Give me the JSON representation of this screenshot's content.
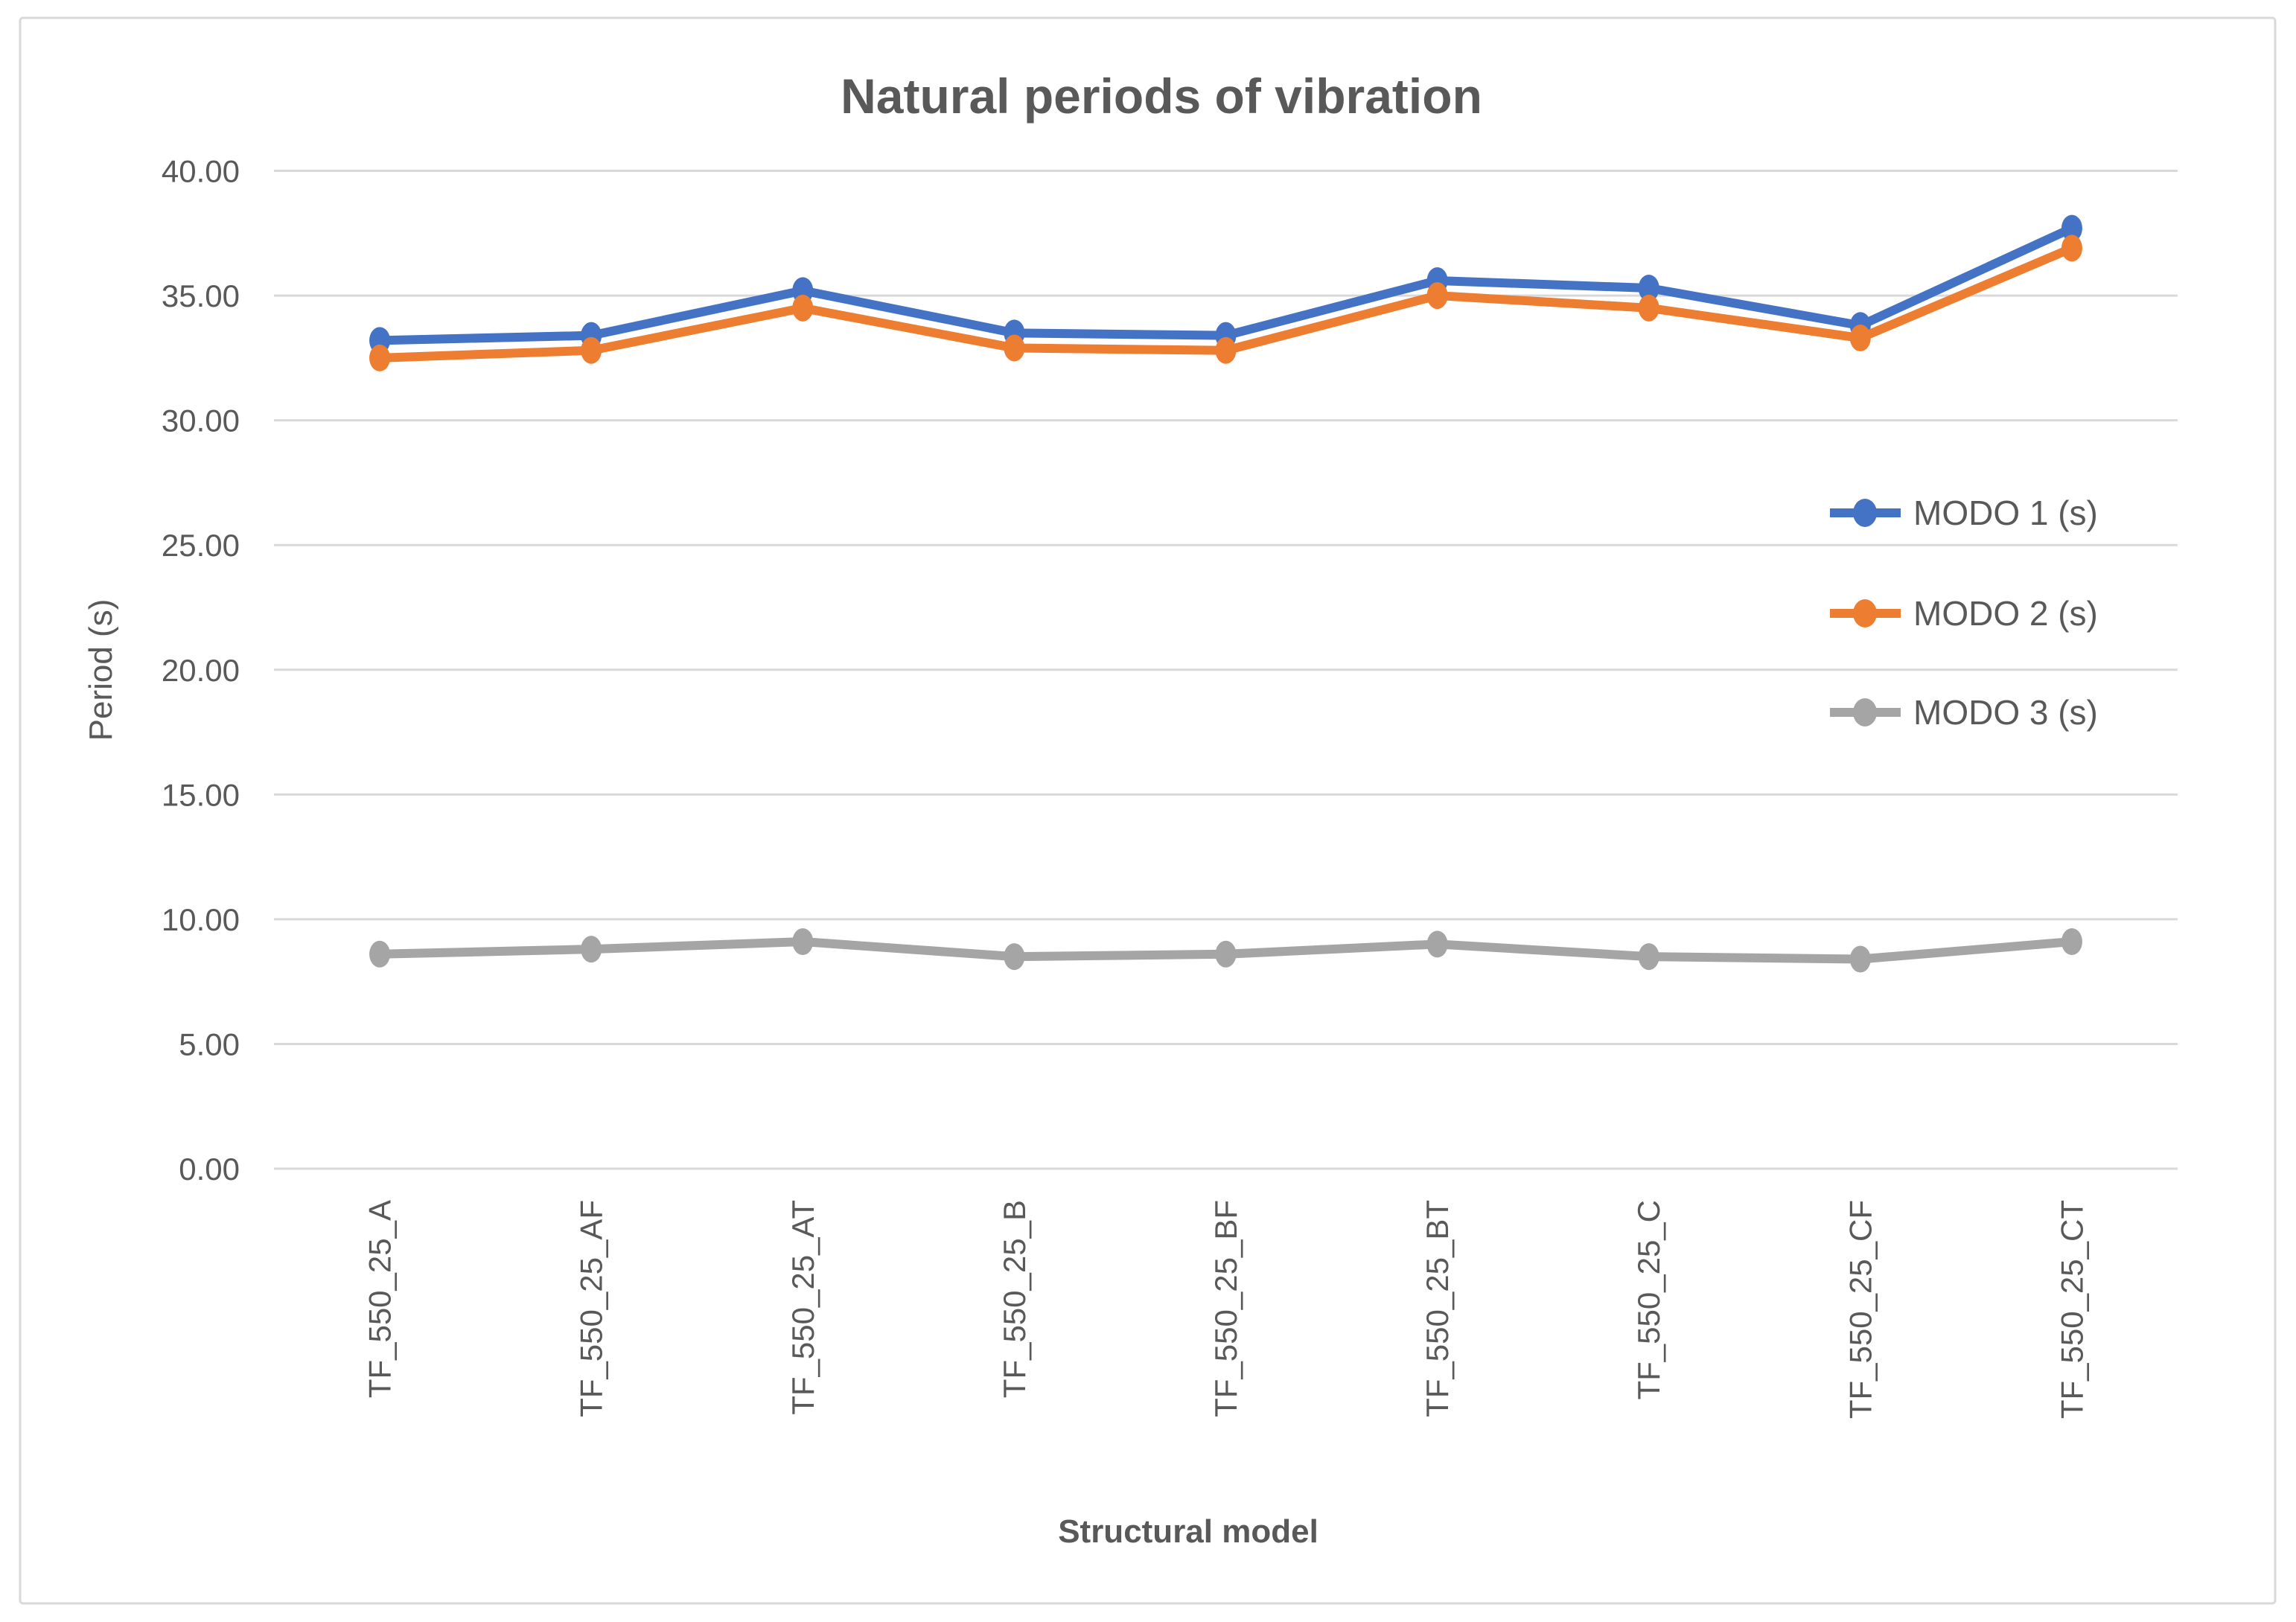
{
  "chart": {
    "title": "Natural periods of vibration",
    "xlabel": "Structural model",
    "ylabel": "Period (s)"
  },
  "chart_data": {
    "type": "line",
    "title": "Natural periods of vibration",
    "xlabel": "Structural model",
    "ylabel": "Period (s)",
    "categories": [
      "TF_550_25_A",
      "TF_550_25_AF",
      "TF_550_25_AT",
      "TF_550_25_B",
      "TF_550_25_BF",
      "TF_550_25_BT",
      "TF_550_25_C",
      "TF_550_25_CF",
      "TF_550_25_CT"
    ],
    "series": [
      {
        "name": "MODO 1 (s)",
        "color": "#4472C4",
        "values": [
          33.2,
          33.4,
          35.2,
          33.5,
          33.4,
          35.6,
          35.3,
          33.8,
          37.7
        ]
      },
      {
        "name": "MODO 2 (s)",
        "color": "#ED7D31",
        "values": [
          32.5,
          32.8,
          34.5,
          32.9,
          32.8,
          35.0,
          34.5,
          33.3,
          36.9
        ]
      },
      {
        "name": "MODO 3 (s)",
        "color": "#A5A5A5",
        "values": [
          8.6,
          8.8,
          9.1,
          8.5,
          8.6,
          9.0,
          8.5,
          8.4,
          9.1
        ]
      }
    ],
    "ylim": [
      0,
      40
    ],
    "ytick_step": 5,
    "ytick_labels": [
      "0.00",
      "5.00",
      "10.00",
      "15.00",
      "20.00",
      "25.00",
      "30.00",
      "35.00",
      "40.00"
    ],
    "grid": "horizontal",
    "legend_position": "right-inside"
  },
  "colors": {
    "text": "#595959",
    "gridline": "#D9D9D9",
    "border": "#D9D9D9",
    "background": "#FFFFFF"
  }
}
